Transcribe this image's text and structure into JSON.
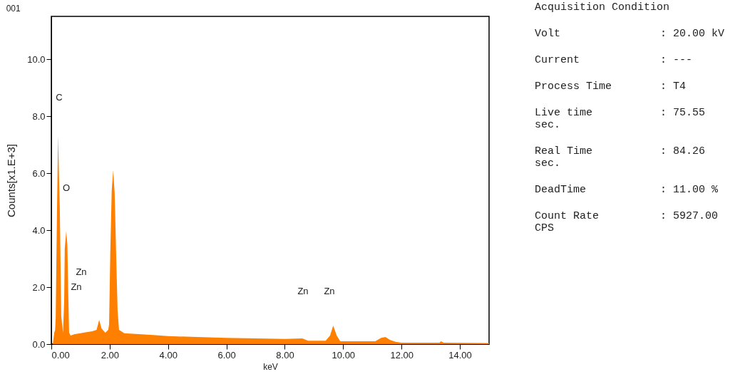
{
  "chart_data": [
    {
      "type": "area",
      "title": "001",
      "xlabel": "keV",
      "ylabel": "Counts[x1.E+3]",
      "color": "#ff8000",
      "grid": false,
      "x": [
        0.05,
        0.1,
        0.13,
        0.15,
        0.19,
        0.23,
        0.29,
        0.34,
        0.4,
        0.44,
        0.46,
        0.51,
        0.55,
        0.58,
        0.61,
        0.66,
        0.8,
        1.0,
        1.2,
        1.4,
        1.55,
        1.64,
        1.72,
        1.85,
        1.95,
        1.98,
        2.02,
        2.07,
        2.12,
        2.17,
        2.22,
        2.27,
        2.32,
        2.5,
        3.0,
        3.5,
        4.0,
        5.0,
        6.0,
        7.0,
        8.0,
        8.6,
        8.8,
        9.4,
        9.55,
        9.66,
        9.78,
        9.9,
        10.5,
        11.1,
        11.3,
        11.45,
        11.6,
        11.8,
        12.0,
        13.3,
        13.35,
        13.45,
        15.0
      ],
      "values": [
        0.0,
        0.4,
        0.5,
        0.93,
        4.35,
        7.31,
        4.8,
        0.98,
        0.4,
        1.5,
        3.35,
        3.96,
        3.5,
        1.8,
        0.4,
        0.3,
        0.35,
        0.38,
        0.42,
        0.45,
        0.5,
        0.85,
        0.55,
        0.4,
        0.5,
        0.7,
        3.2,
        5.4,
        6.1,
        5.3,
        3.2,
        1.2,
        0.5,
        0.38,
        0.35,
        0.32,
        0.28,
        0.25,
        0.22,
        0.2,
        0.18,
        0.2,
        0.12,
        0.12,
        0.3,
        0.65,
        0.3,
        0.1,
        0.1,
        0.1,
        0.22,
        0.25,
        0.15,
        0.08,
        0.05,
        0.05,
        0.1,
        0.05,
        0.04
      ],
      "xlim": [
        0,
        15
      ],
      "xticks": [
        {
          "value": 0,
          "label": "0.00"
        },
        {
          "value": 2,
          "label": "2.00"
        },
        {
          "value": 4,
          "label": "4.00"
        },
        {
          "value": 6,
          "label": "6.00"
        },
        {
          "value": 8,
          "label": "8.00"
        },
        {
          "value": 10,
          "label": "10.00"
        },
        {
          "value": 12,
          "label": "12.00"
        },
        {
          "value": 14,
          "label": "14.00"
        }
      ],
      "ylim": [
        0,
        11.5
      ],
      "yticks": [
        {
          "value": 0,
          "label": "0.0"
        },
        {
          "value": 2,
          "label": "2.0"
        },
        {
          "value": 4,
          "label": "4.0"
        },
        {
          "value": 6,
          "label": "6.0"
        },
        {
          "value": 8,
          "label": "8.0"
        },
        {
          "value": 10,
          "label": "10.0"
        }
      ],
      "annotations": [
        "C",
        "O",
        "Zn",
        "Zn",
        "Zn",
        "Zn"
      ]
    },
    {
      "type": "other",
      "title": "Acquisition Condition",
      "annotations": [
        "Volt",
        ": 20.00 kV",
        "Current",
        ": ---",
        "Process Time",
        ": T4",
        "Live time sec.",
        ": 75.55",
        "Real Time sec.",
        ": 84.26",
        "DeadTime",
        ": 11.00 %",
        "Count Rate CPS",
        ": 5927.00"
      ]
    }
  ]
}
